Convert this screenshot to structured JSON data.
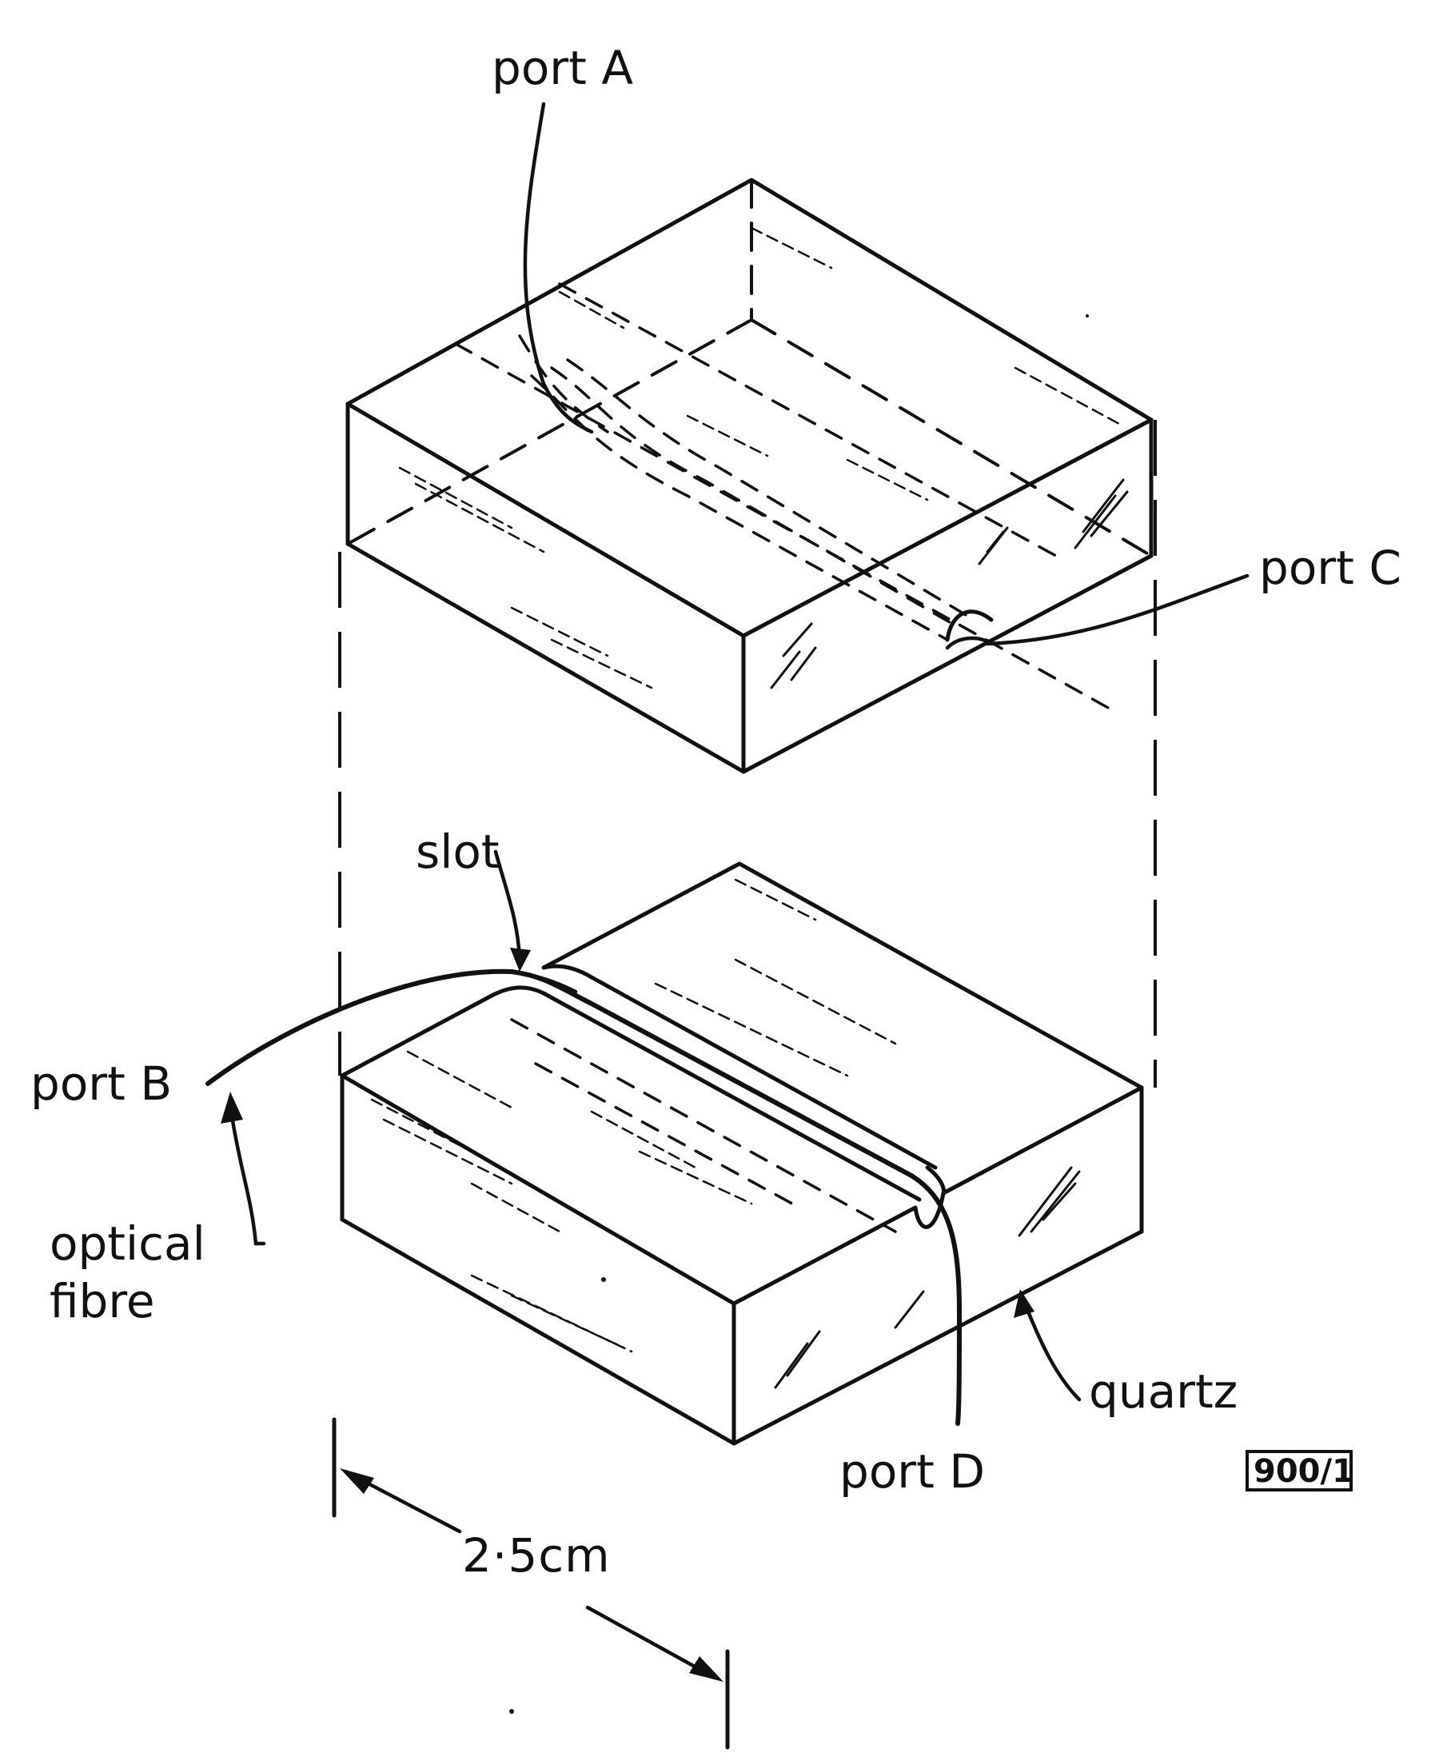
{
  "labels": {
    "port_a": "port A",
    "port_b": "port B",
    "port_c": "port C",
    "port_d": "port D",
    "slot": "slot",
    "optical_fibre_line1": "optical",
    "optical_fibre_line2": "fibre",
    "quartz": "quartz",
    "dimension": "2·5cm",
    "figure_tag": "900/1"
  }
}
